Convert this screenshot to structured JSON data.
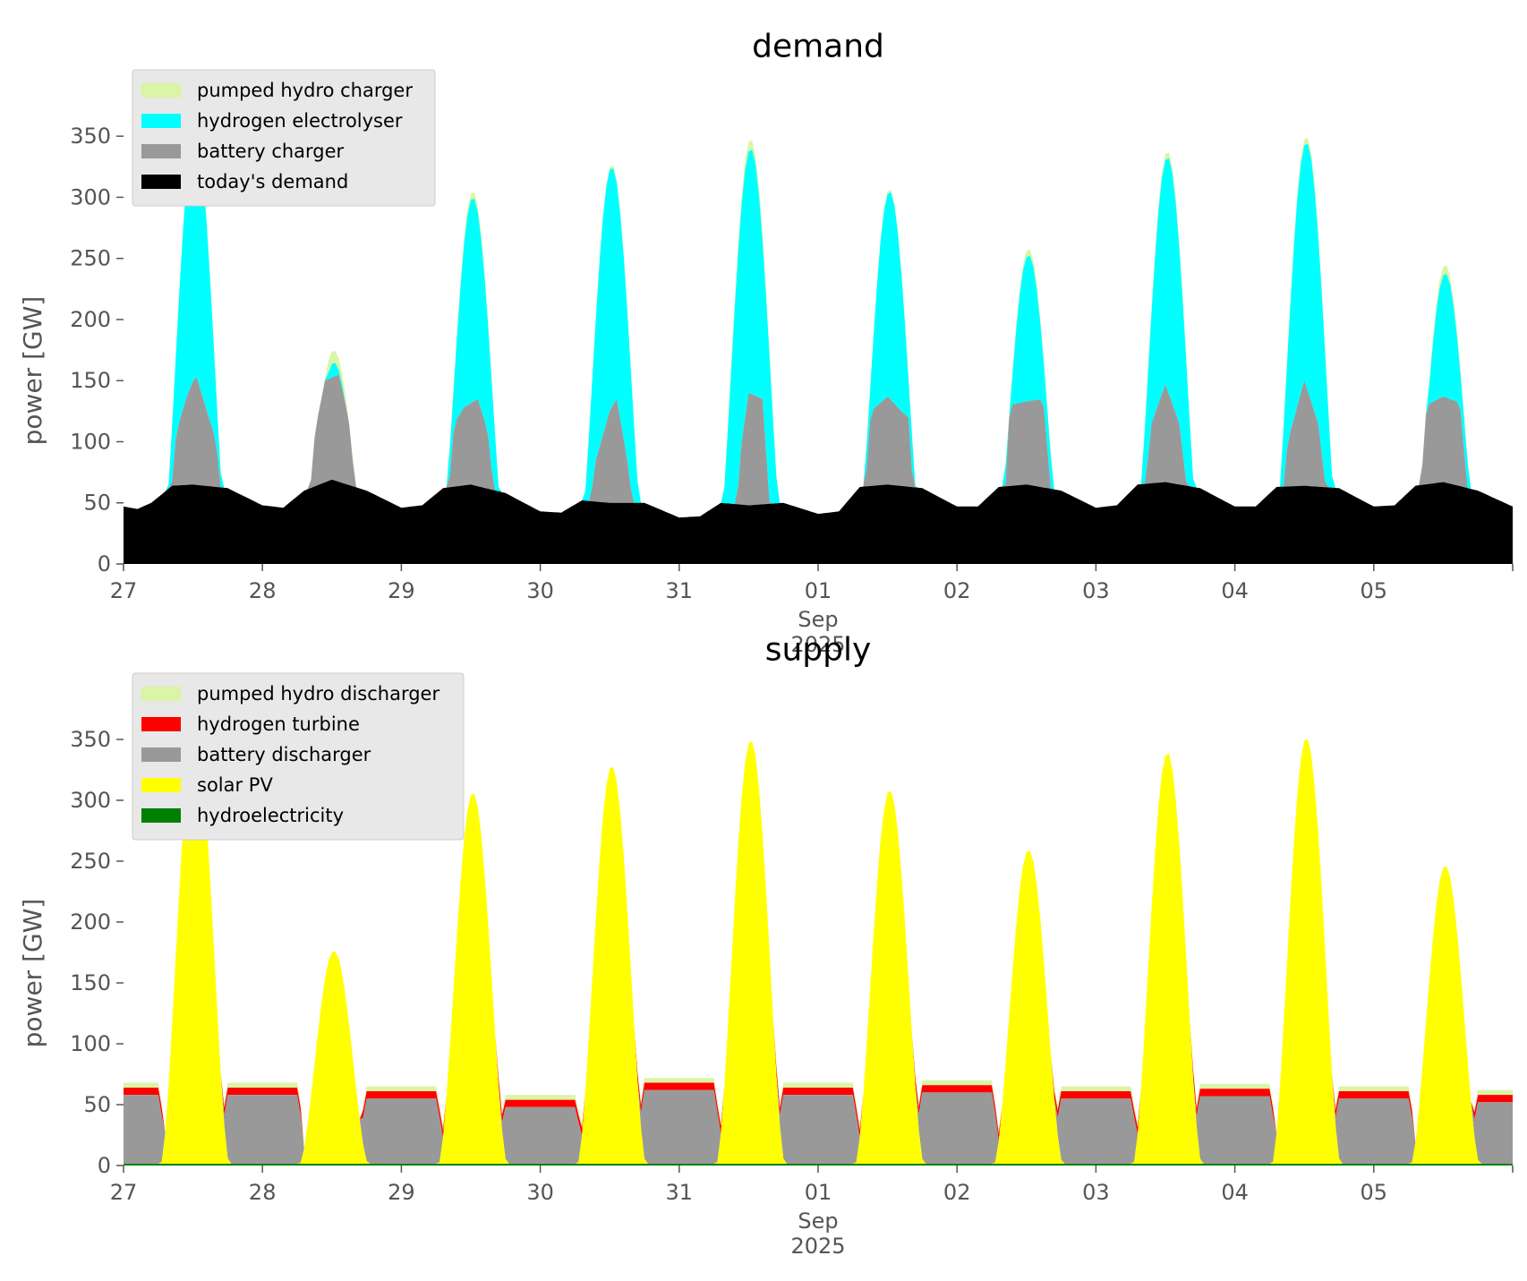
{
  "chart_data": [
    {
      "type": "area",
      "stacked": true,
      "title": "demand",
      "ylabel": "power [GW]",
      "ylim": [
        0,
        375
      ],
      "yticks": [
        0,
        50,
        100,
        150,
        200,
        250,
        300,
        350
      ],
      "xlim": [
        0,
        10
      ],
      "xticks": [
        {
          "x": 0,
          "label": "27"
        },
        {
          "x": 1,
          "label": "28"
        },
        {
          "x": 2,
          "label": "29"
        },
        {
          "x": 3,
          "label": "30"
        },
        {
          "x": 4,
          "label": "31"
        },
        {
          "x": 5,
          "label": "01"
        },
        {
          "x": 6,
          "label": "02"
        },
        {
          "x": 7,
          "label": "03"
        },
        {
          "x": 8,
          "label": "04"
        },
        {
          "x": 9,
          "label": "05"
        }
      ],
      "xlabel_month": "Sep",
      "xlabel_year": "2025",
      "grid": false,
      "legend_position": "upper-left",
      "legend": [
        {
          "label": "pumped hydro charger",
          "color": "#d9f5a5"
        },
        {
          "label": "hydrogen electrolyser",
          "color": "#00ffff"
        },
        {
          "label": "battery charger",
          "color": "#999999"
        },
        {
          "label": "today's demand",
          "color": "#000000"
        }
      ],
      "series": [
        {
          "name": "today's demand",
          "color": "#000000",
          "x": [
            0,
            0.1,
            0.2,
            0.35,
            0.5,
            0.75,
            1.0,
            1.15,
            1.3,
            1.5,
            1.75,
            2.0,
            2.15,
            2.3,
            2.5,
            2.75,
            3.0,
            3.15,
            3.3,
            3.5,
            3.75,
            4.0,
            4.15,
            4.3,
            4.5,
            4.75,
            5.0,
            5.15,
            5.3,
            5.5,
            5.75,
            6.0,
            6.15,
            6.3,
            6.5,
            6.75,
            7.0,
            7.15,
            7.3,
            7.5,
            7.75,
            8.0,
            8.15,
            8.3,
            8.5,
            8.75,
            9.0,
            9.15,
            9.3,
            9.5,
            9.75,
            10.0
          ],
          "values": [
            47,
            45,
            50,
            64,
            65,
            62,
            48,
            46,
            60,
            69,
            60,
            46,
            48,
            62,
            65,
            58,
            43,
            42,
            52,
            50,
            50,
            38,
            39,
            50,
            48,
            50,
            41,
            43,
            63,
            65,
            62,
            47,
            47,
            63,
            65,
            60,
            46,
            48,
            65,
            67,
            62,
            47,
            47,
            63,
            64,
            62,
            47,
            48,
            64,
            67,
            60,
            47
          ]
        },
        {
          "name": "battery charger",
          "color": "#999999",
          "x": [
            0,
            1,
            2,
            3,
            4,
            5,
            6,
            7,
            8,
            9,
            10
          ],
          "values": [
            0,
            0,
            0,
            0,
            0,
            0,
            0,
            0,
            0,
            0,
            0
          ],
          "peaks": [
            {
              "day": 0,
              "x": [
                0.3,
                0.38,
                0.45,
                0.52,
                0.6,
                0.67,
                0.72
              ],
              "values": [
                0,
                108,
                135,
                155,
                125,
                100,
                0
              ]
            },
            {
              "day": 1,
              "x": [
                1.3,
                1.38,
                1.45,
                1.55,
                1.62,
                1.72
              ],
              "values": [
                0,
                110,
                150,
                155,
                120,
                0
              ]
            },
            {
              "day": 2,
              "x": [
                2.3,
                2.38,
                2.45,
                2.55,
                2.62,
                2.72
              ],
              "values": [
                0,
                115,
                128,
                135,
                110,
                0
              ]
            },
            {
              "day": 3,
              "x": [
                3.3,
                3.4,
                3.5,
                3.55,
                3.62,
                3.72
              ],
              "values": [
                0,
                85,
                125,
                135,
                90,
                0
              ]
            },
            {
              "day": 4,
              "x": [
                4.38,
                4.45,
                4.5,
                4.6,
                4.68
              ],
              "values": [
                0,
                100,
                140,
                135,
                0
              ]
            },
            {
              "day": 5,
              "x": [
                5.3,
                5.38,
                5.5,
                5.6,
                5.65,
                5.72
              ],
              "values": [
                0,
                125,
                137,
                125,
                120,
                0
              ]
            },
            {
              "day": 6,
              "x": [
                6.32,
                6.38,
                6.5,
                6.62,
                6.72
              ],
              "values": [
                0,
                130,
                133,
                135,
                0
              ]
            },
            {
              "day": 7,
              "x": [
                7.3,
                7.4,
                7.5,
                7.6,
                7.72
              ],
              "values": [
                0,
                115,
                147,
                115,
                0
              ]
            },
            {
              "day": 8,
              "x": [
                8.3,
                8.38,
                8.5,
                8.6,
                8.72
              ],
              "values": [
                0,
                100,
                150,
                115,
                0
              ]
            },
            {
              "day": 9,
              "x": [
                9.3,
                9.38,
                9.5,
                9.62,
                9.72
              ],
              "values": [
                0,
                130,
                137,
                132,
                0
              ]
            }
          ]
        },
        {
          "name": "hydrogen electrolyser",
          "color": "#00ffff",
          "peak_totals": [
            355,
            165,
            300,
            325,
            340,
            305,
            253,
            333,
            345,
            238
          ]
        },
        {
          "name": "pumped hydro charger",
          "color": "#d9f5a5",
          "peak_totals": [
            358,
            175,
            305,
            327,
            348,
            307,
            258,
            338,
            350,
            245
          ]
        }
      ]
    },
    {
      "type": "area",
      "stacked": true,
      "title": "supply",
      "ylabel": "power [GW]",
      "ylim": [
        0,
        375
      ],
      "yticks": [
        0,
        50,
        100,
        150,
        200,
        250,
        300,
        350
      ],
      "xlim": [
        0,
        10
      ],
      "xticks": [
        {
          "x": 0,
          "label": "27"
        },
        {
          "x": 1,
          "label": "28"
        },
        {
          "x": 2,
          "label": "29"
        },
        {
          "x": 3,
          "label": "30"
        },
        {
          "x": 4,
          "label": "31"
        },
        {
          "x": 5,
          "label": "01"
        },
        {
          "x": 6,
          "label": "02"
        },
        {
          "x": 7,
          "label": "03"
        },
        {
          "x": 8,
          "label": "04"
        },
        {
          "x": 9,
          "label": "05"
        }
      ],
      "xlabel_month": "Sep",
      "xlabel_year": "2025",
      "grid": false,
      "legend_position": "upper-left",
      "legend": [
        {
          "label": "pumped hydro discharger",
          "color": "#d9f5a5"
        },
        {
          "label": "hydrogen turbine",
          "color": "#ff0000"
        },
        {
          "label": "battery discharger",
          "color": "#999999"
        },
        {
          "label": "solar PV",
          "color": "#ffff00"
        },
        {
          "label": "hydroelectricity",
          "color": "#008000"
        }
      ],
      "series": [
        {
          "name": "hydroelectricity",
          "color": "#008000",
          "constant": 1.5
        },
        {
          "name": "solar PV",
          "color": "#ffff00",
          "peak_totals": [
            358,
            175,
            305,
            327,
            348,
            307,
            258,
            338,
            350,
            245
          ]
        },
        {
          "name": "battery discharger",
          "color": "#999999",
          "night_totals": [
            38,
            35,
            28,
            42,
            38,
            40,
            35,
            37,
            35,
            32
          ]
        },
        {
          "name": "hydrogen turbine",
          "color": "#ff0000",
          "night_totals": [
            40,
            42,
            40,
            42,
            38,
            40,
            42,
            40,
            42,
            45
          ]
        },
        {
          "name": "pumped hydro discharger",
          "color": "#d9f5a5",
          "night_totals": [
            46,
            46,
            46,
            45,
            43,
            45,
            47,
            46,
            46,
            47
          ]
        }
      ]
    }
  ]
}
